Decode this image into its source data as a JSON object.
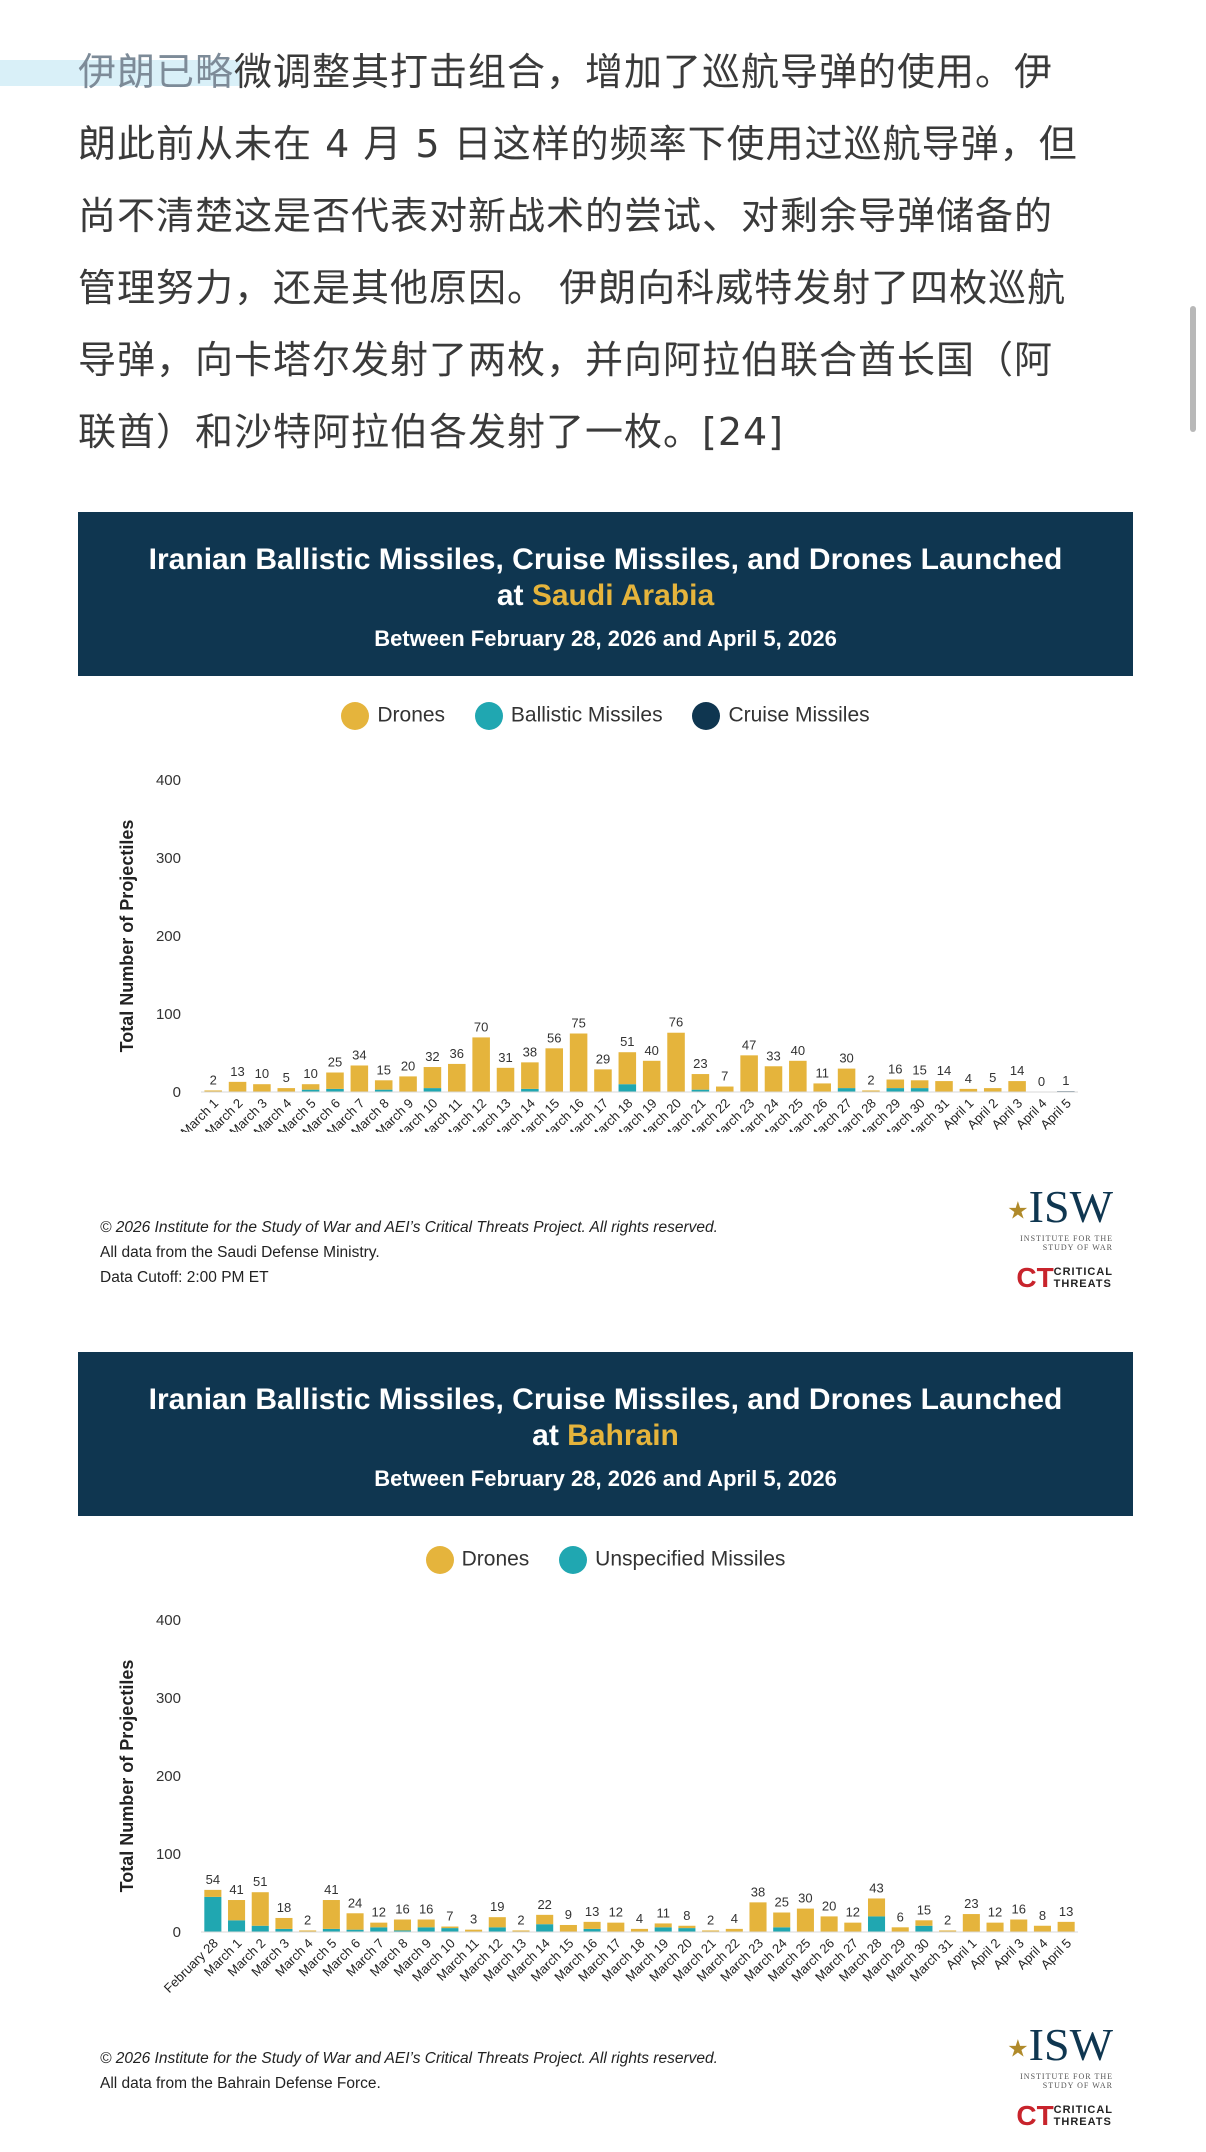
{
  "article": {
    "lines": [
      {
        "faded": "伊朗已略",
        "rest": "微调整其打击组合，增加了巡航导弹的使用。伊"
      },
      {
        "faded": "",
        "rest": "朗此前从未在 4 月 5 日这样的频率下使用过巡航导弹，但"
      },
      {
        "faded": "",
        "rest": "尚不清楚这是否代表对新战术的尝试、对剩余导弹储备的"
      },
      {
        "faded": "",
        "rest": "管理努力，还是其他原因。 伊朗向科威特发射了四枚巡航"
      },
      {
        "faded": "",
        "rest": "导弹，向卡塔尔发射了两枚，并向阿拉伯联合酋长国（阿"
      },
      {
        "faded": "",
        "rest": "联酋）和沙特阿拉伯各发射了一枚。[24]"
      }
    ]
  },
  "colors": {
    "banner_bg": "#0f3650",
    "country_highlight": "#e5b43c",
    "drones": "#e5b43c",
    "ballistic": "#20a7b1",
    "cruise": "#0f3650",
    "unspecified": "#20a7b1"
  },
  "chart_data": [
    {
      "type": "bar",
      "stacked": true,
      "title_line1": "Iranian Ballistic Missiles, Cruise Missiles, and Drones Launched",
      "title_at": "at ",
      "country": "Saudi Arabia",
      "subtitle": "Between February 28, 2026 and April 5, 2026",
      "ylabel": "Total Number of Projectiles",
      "ylim": [
        0,
        400
      ],
      "yticks": [
        0,
        100,
        200,
        300,
        400
      ],
      "legend": [
        "Drones",
        "Ballistic Missiles",
        "Cruise Missiles"
      ],
      "categories": [
        "March 1",
        "March 2",
        "March 3",
        "March 4",
        "March 5",
        "March 6",
        "March 7",
        "March 8",
        "March 9",
        "March 10",
        "March 11",
        "March 12",
        "March 13",
        "March 14",
        "March 15",
        "March 16",
        "March 17",
        "March 18",
        "March 19",
        "March 20",
        "March 21",
        "March 22",
        "March 23",
        "March 24",
        "March 25",
        "March 26",
        "March 27",
        "March 28",
        "March 29",
        "March 30",
        "March 31",
        "April 1",
        "April 2",
        "April 3",
        "April 4",
        "April 5"
      ],
      "totals": [
        2,
        13,
        10,
        5,
        10,
        25,
        34,
        15,
        20,
        32,
        36,
        70,
        31,
        38,
        56,
        75,
        29,
        51,
        40,
        76,
        23,
        7,
        47,
        33,
        40,
        11,
        30,
        2,
        16,
        15,
        14,
        4,
        5,
        14,
        0,
        1
      ],
      "series": [
        {
          "name": "Ballistic Missiles",
          "values": [
            0,
            0,
            0,
            0,
            3,
            4,
            0,
            3,
            0,
            5,
            0,
            0,
            0,
            4,
            0,
            0,
            0,
            10,
            0,
            0,
            3,
            0,
            0,
            0,
            0,
            0,
            5,
            0,
            5,
            5,
            0,
            0,
            0,
            0,
            0,
            0
          ]
        },
        {
          "name": "Cruise Missiles",
          "values": [
            0,
            0,
            0,
            0,
            0,
            0,
            0,
            0,
            0,
            0,
            0,
            0,
            0,
            0,
            0,
            0,
            0,
            0,
            0,
            0,
            0,
            0,
            0,
            0,
            0,
            0,
            0,
            0,
            0,
            0,
            0,
            0,
            0,
            0,
            0,
            1
          ]
        },
        {
          "name": "Drones",
          "values": [
            2,
            13,
            10,
            5,
            7,
            21,
            34,
            12,
            20,
            27,
            36,
            70,
            31,
            34,
            56,
            75,
            29,
            41,
            40,
            76,
            20,
            7,
            47,
            33,
            40,
            11,
            25,
            2,
            11,
            10,
            14,
            4,
            5,
            14,
            0,
            0
          ]
        }
      ],
      "footer": {
        "copyright": "© 2026 Institute for the Study of War and AEI’s Critical Threats Project. All rights reserved.",
        "source": "All data from the Saudi Defense Ministry.",
        "cutoff": "Data Cutoff: 2:00 PM ET"
      }
    },
    {
      "type": "bar",
      "stacked": true,
      "title_line1": "Iranian Ballistic Missiles, Cruise Missiles, and Drones Launched",
      "title_at": "at ",
      "country": "Bahrain",
      "subtitle": "Between February 28, 2026 and April 5, 2026",
      "ylabel": "Total Number of Projectiles",
      "ylim": [
        0,
        400
      ],
      "yticks": [
        0,
        100,
        200,
        300,
        400
      ],
      "legend": [
        "Drones",
        "Unspecified Missiles"
      ],
      "categories": [
        "February 28",
        "March 1",
        "March 2",
        "March 3",
        "March 4",
        "March 5",
        "March 6",
        "March 7",
        "March 8",
        "March 9",
        "March 10",
        "March 11",
        "March 12",
        "March 13",
        "March 14",
        "March 15",
        "March 16",
        "March 17",
        "March 18",
        "March 19",
        "March 20",
        "March 21",
        "March 22",
        "March 23",
        "March 24",
        "March 25",
        "March 26",
        "March 27",
        "March 28",
        "March 29",
        "March 30",
        "March 31",
        "April 1",
        "April 2",
        "April 3",
        "April 4",
        "April 5"
      ],
      "totals": [
        54,
        41,
        51,
        18,
        2,
        41,
        24,
        12,
        16,
        16,
        7,
        3,
        19,
        2,
        22,
        9,
        13,
        12,
        4,
        11,
        8,
        2,
        4,
        38,
        25,
        30,
        20,
        12,
        43,
        6,
        15,
        2,
        23,
        12,
        16,
        8,
        13
      ],
      "series": [
        {
          "name": "Unspecified Missiles",
          "values": [
            45,
            15,
            8,
            4,
            0,
            4,
            3,
            6,
            2,
            6,
            5,
            0,
            6,
            0,
            10,
            0,
            4,
            0,
            0,
            6,
            5,
            0,
            0,
            0,
            6,
            0,
            0,
            0,
            20,
            0,
            8,
            0,
            0,
            0,
            0,
            0,
            0
          ]
        },
        {
          "name": "Drones",
          "values": [
            9,
            26,
            43,
            14,
            2,
            37,
            21,
            6,
            14,
            10,
            2,
            3,
            13,
            2,
            12,
            9,
            9,
            12,
            4,
            5,
            3,
            2,
            4,
            38,
            19,
            30,
            20,
            12,
            23,
            6,
            7,
            2,
            23,
            12,
            16,
            8,
            13
          ]
        }
      ],
      "footer": {
        "copyright": "© 2026 Institute for the Study of War and AEI’s Critical Threats Project. All rights reserved.",
        "source": "All data from the Bahrain Defense Force."
      }
    }
  ],
  "logos": {
    "isw_text": "ISW",
    "isw_sub": "INSTITUTE FOR THE STUDY OF WAR",
    "ct_mark": "CT",
    "ct_line1": "CRITICAL",
    "ct_line2": "THREATS"
  }
}
